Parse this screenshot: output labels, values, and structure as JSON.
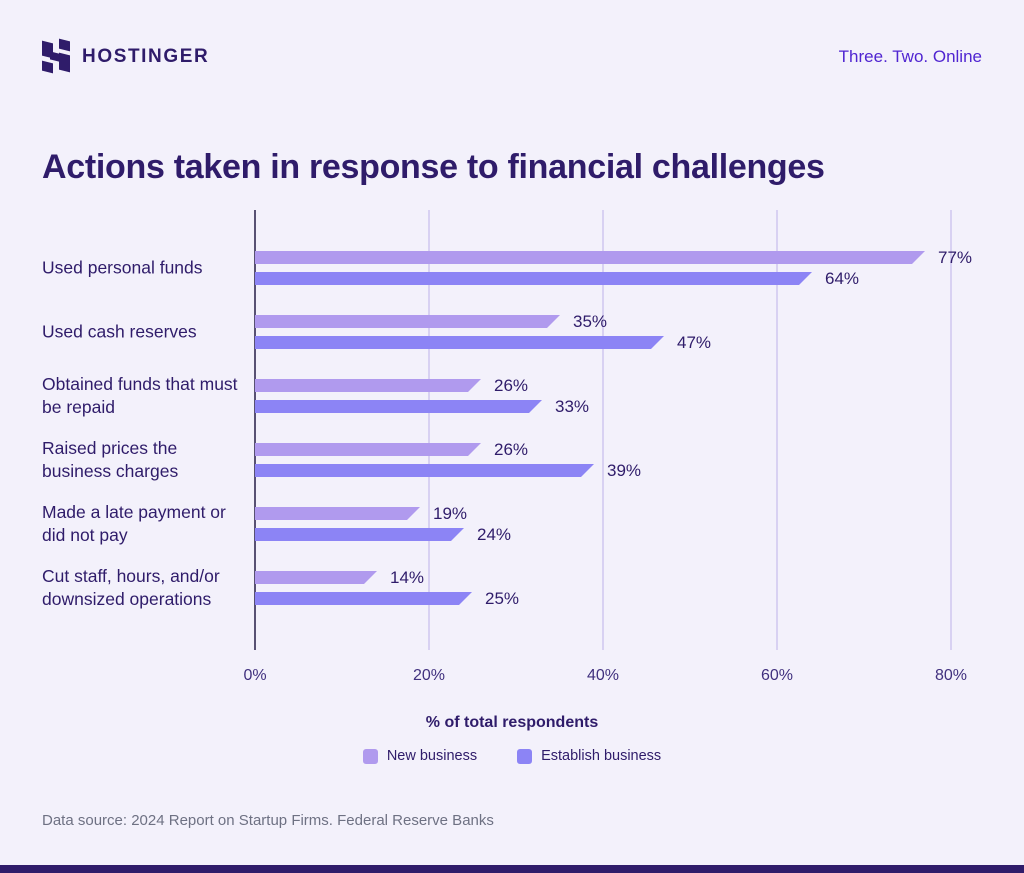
{
  "header": {
    "brand": "HOSTINGER",
    "tagline": "Three. Two. Online"
  },
  "title": "Actions taken in response to financial challenges",
  "chart_data": {
    "type": "bar",
    "orientation": "horizontal",
    "title": "Actions taken in response to financial challenges",
    "categories": [
      "Used personal funds",
      "Used cash reserves",
      "Obtained funds that must be repaid",
      "Raised prices the business charges",
      "Made a late payment or did not pay",
      "Cut staff, hours, and/or downsized operations"
    ],
    "series": [
      {
        "name": "New business",
        "color": "#b09aee",
        "values": [
          77,
          35,
          26,
          26,
          19,
          14
        ]
      },
      {
        "name": "Establish business",
        "color": "#8c84f5",
        "values": [
          64,
          47,
          33,
          39,
          24,
          25
        ]
      }
    ],
    "value_labels": [
      [
        "77%",
        "35%",
        "26%",
        "26%",
        "19%",
        "14%"
      ],
      [
        "64%",
        "47%",
        "33%",
        "39%",
        "24%",
        "25%"
      ]
    ],
    "xlabel": "% of total respondents",
    "x_ticks": [
      "0%",
      "20%",
      "40%",
      "60%",
      "80%"
    ],
    "xlim": [
      0,
      80
    ],
    "grid": true,
    "legend_position": "bottom"
  },
  "footer": {
    "source": "Data source: 2024 Report on Startup Firms. Federal Reserve Banks"
  },
  "colors": {
    "background": "#f3f1fb",
    "title_text": "#2f1c6a",
    "tagline_text": "#5025d1",
    "new_business": "#b09aee",
    "establish_business": "#8c84f5",
    "gridline": "#d8d1f2",
    "axis_line": "#585173",
    "source_text": "#6e7183",
    "footer_bar": "#2f1c6a"
  }
}
